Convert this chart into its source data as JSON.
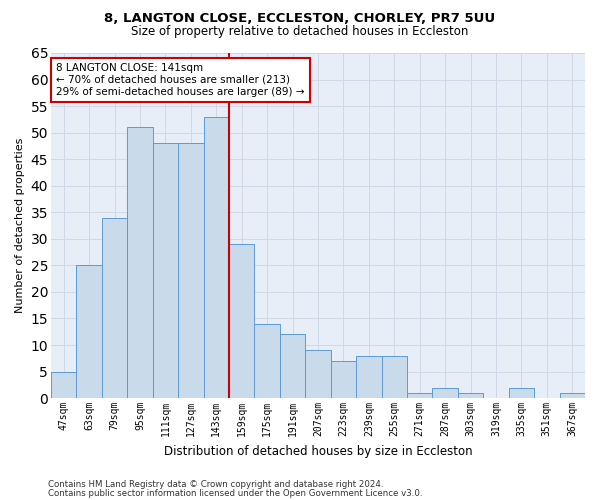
{
  "title1": "8, LANGTON CLOSE, ECCLESTON, CHORLEY, PR7 5UU",
  "title2": "Size of property relative to detached houses in Eccleston",
  "xlabel": "Distribution of detached houses by size in Eccleston",
  "ylabel": "Number of detached properties",
  "categories": [
    "47sqm",
    "63sqm",
    "79sqm",
    "95sqm",
    "111sqm",
    "127sqm",
    "143sqm",
    "159sqm",
    "175sqm",
    "191sqm",
    "207sqm",
    "223sqm",
    "239sqm",
    "255sqm",
    "271sqm",
    "287sqm",
    "303sqm",
    "319sqm",
    "335sqm",
    "351sqm",
    "367sqm"
  ],
  "values": [
    5,
    25,
    34,
    51,
    48,
    48,
    53,
    29,
    14,
    12,
    9,
    7,
    8,
    8,
    1,
    2,
    1,
    0,
    2,
    0,
    1
  ],
  "bar_color": "#c9daea",
  "bar_edge_color": "#5b9bd5",
  "marker_line_index": 6,
  "marker_label": "8 LANGTON CLOSE: 141sqm",
  "annotation_line1": "← 70% of detached houses are smaller (213)",
  "annotation_line2": "29% of semi-detached houses are larger (89) →",
  "annotation_box_color": "#ffffff",
  "annotation_box_edge_color": "#cc0000",
  "marker_line_color": "#cc0000",
  "ylim": [
    0,
    65
  ],
  "yticks": [
    0,
    5,
    10,
    15,
    20,
    25,
    30,
    35,
    40,
    45,
    50,
    55,
    60,
    65
  ],
  "grid_color": "#d0d8e8",
  "bg_color": "#e8eef8",
  "footnote1": "Contains HM Land Registry data © Crown copyright and database right 2024.",
  "footnote2": "Contains public sector information licensed under the Open Government Licence v3.0."
}
